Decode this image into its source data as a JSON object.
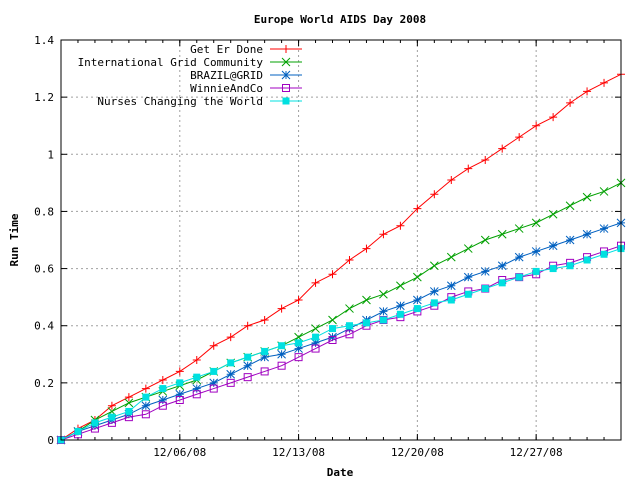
{
  "chart_data": {
    "type": "line",
    "title": "Europe World AIDS Day 2008",
    "xlabel": "Date",
    "ylabel": "Run Time",
    "xlim": [
      "2008-11-29",
      "2009-01-01"
    ],
    "ylim": [
      0,
      1.4
    ],
    "yticks": [
      0,
      0.2,
      0.4,
      0.6,
      0.8,
      1,
      1.2,
      1.4
    ],
    "ytick_labels": [
      "0",
      "0.2",
      "0.4",
      "0.6",
      "0.8",
      "1",
      "1.2",
      "1.4"
    ],
    "xticks": [
      "2008-12-06",
      "2008-12-13",
      "2008-12-20",
      "2008-12-27"
    ],
    "xtick_labels": [
      "12/06/08",
      "12/13/08",
      "12/20/08",
      "12/27/08"
    ],
    "grid": true,
    "legend_position": "top-right",
    "x": [
      "2008-11-29",
      "2008-11-30",
      "2008-12-01",
      "2008-12-02",
      "2008-12-03",
      "2008-12-04",
      "2008-12-05",
      "2008-12-06",
      "2008-12-07",
      "2008-12-08",
      "2008-12-09",
      "2008-12-10",
      "2008-12-11",
      "2008-12-12",
      "2008-12-13",
      "2008-12-14",
      "2008-12-15",
      "2008-12-16",
      "2008-12-17",
      "2008-12-18",
      "2008-12-19",
      "2008-12-20",
      "2008-12-21",
      "2008-12-22",
      "2008-12-23",
      "2008-12-24",
      "2008-12-25",
      "2008-12-26",
      "2008-12-27",
      "2008-12-28",
      "2008-12-29",
      "2008-12-30",
      "2008-12-31",
      "2009-01-01"
    ],
    "series": [
      {
        "name": "Get Er Done",
        "color": "#ff0000",
        "marker": "plus",
        "values": [
          0,
          0.04,
          0.07,
          0.12,
          0.15,
          0.18,
          0.21,
          0.24,
          0.28,
          0.33,
          0.36,
          0.4,
          0.42,
          0.46,
          0.49,
          0.55,
          0.58,
          0.63,
          0.67,
          0.72,
          0.75,
          0.81,
          0.86,
          0.91,
          0.95,
          0.98,
          1.02,
          1.06,
          1.1,
          1.13,
          1.18,
          1.22,
          1.25,
          1.28
        ]
      },
      {
        "name": "International Grid Community",
        "color": "#00a000",
        "marker": "x",
        "values": [
          0,
          0.03,
          0.07,
          0.1,
          0.13,
          0.15,
          0.17,
          0.19,
          0.21,
          0.24,
          0.27,
          0.29,
          0.31,
          0.33,
          0.36,
          0.39,
          0.42,
          0.46,
          0.49,
          0.51,
          0.54,
          0.57,
          0.61,
          0.64,
          0.67,
          0.7,
          0.72,
          0.74,
          0.76,
          0.79,
          0.82,
          0.85,
          0.87,
          0.9
        ]
      },
      {
        "name": "BRAZIL@GRID",
        "color": "#0060c0",
        "marker": "star",
        "values": [
          0,
          0.03,
          0.05,
          0.07,
          0.09,
          0.12,
          0.14,
          0.16,
          0.18,
          0.2,
          0.23,
          0.26,
          0.29,
          0.3,
          0.32,
          0.34,
          0.36,
          0.39,
          0.42,
          0.45,
          0.47,
          0.49,
          0.52,
          0.54,
          0.57,
          0.59,
          0.61,
          0.64,
          0.66,
          0.68,
          0.7,
          0.72,
          0.74,
          0.76
        ]
      },
      {
        "name": "WinnieAndCo",
        "color": "#a000c0",
        "marker": "square-open",
        "values": [
          0,
          0.02,
          0.04,
          0.06,
          0.08,
          0.09,
          0.12,
          0.14,
          0.16,
          0.18,
          0.2,
          0.22,
          0.24,
          0.26,
          0.29,
          0.32,
          0.35,
          0.37,
          0.4,
          0.42,
          0.43,
          0.45,
          0.47,
          0.5,
          0.52,
          0.53,
          0.56,
          0.57,
          0.58,
          0.61,
          0.62,
          0.64,
          0.66,
          0.68
        ]
      },
      {
        "name": "Nurses Changing the World",
        "color": "#00e0e0",
        "marker": "square-filled",
        "values": [
          0,
          0.03,
          0.06,
          0.08,
          0.1,
          0.15,
          0.18,
          0.2,
          0.22,
          0.24,
          0.27,
          0.29,
          0.31,
          0.33,
          0.34,
          0.36,
          0.39,
          0.4,
          0.41,
          0.42,
          0.44,
          0.46,
          0.48,
          0.49,
          0.51,
          0.53,
          0.55,
          0.57,
          0.59,
          0.6,
          0.61,
          0.63,
          0.65,
          0.67
        ]
      }
    ]
  }
}
